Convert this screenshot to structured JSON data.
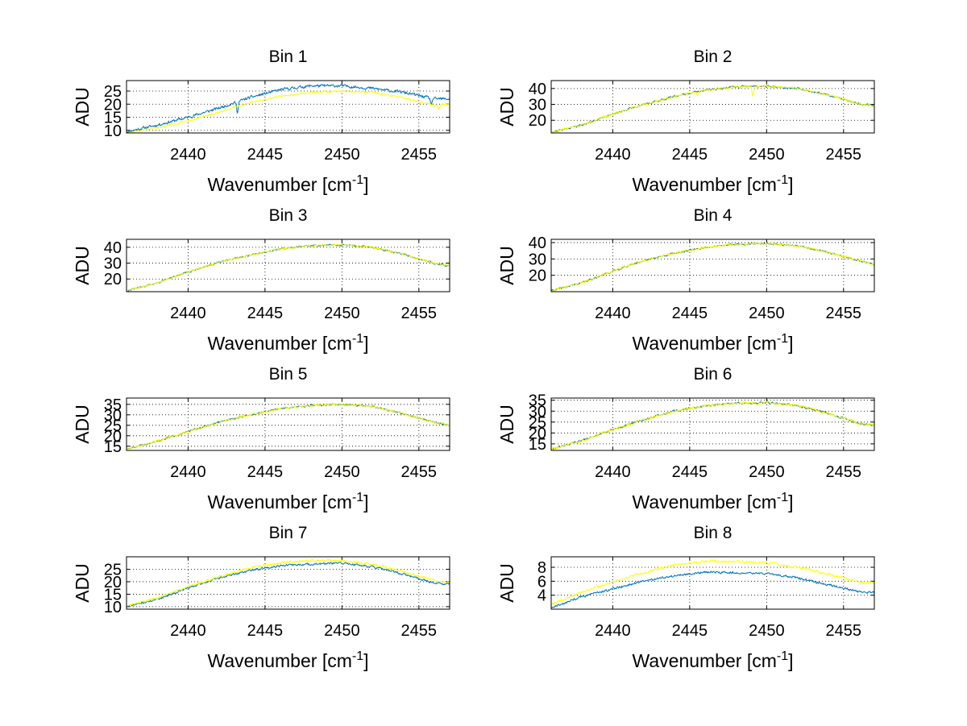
{
  "colors": {
    "series_1": "#0072bd",
    "series_2": "#ffff00",
    "axes": "#000000",
    "grid": "#000000",
    "background": "#ffffff"
  },
  "chart_data": [
    {
      "type": "line",
      "title": "Bin 1",
      "xlabel": "Wavenumber [cm",
      "xlabel_sup": "-1",
      "xlabel_end": "]",
      "ylabel": "ADU",
      "xlim": [
        2436,
        2457
      ],
      "ylim": [
        9,
        29
      ],
      "xticks": [
        2440,
        2445,
        2450,
        2455
      ],
      "yticks": [
        10,
        15,
        20,
        25
      ],
      "series": [
        {
          "name": "blue",
          "color": "#0072bd",
          "seed": 11,
          "noise": 0.45,
          "points": [
            [
              2436,
              9.5
            ],
            [
              2438,
              12
            ],
            [
              2440,
              15
            ],
            [
              2442,
              18.5
            ],
            [
              2444,
              22.5
            ],
            [
              2446,
              25.5
            ],
            [
              2448,
              27
            ],
            [
              2450,
              27
            ],
            [
              2452,
              26
            ],
            [
              2454,
              24.5
            ],
            [
              2456,
              22
            ],
            [
              2457,
              22
            ]
          ],
          "dips": [
            [
              2443.2,
              4
            ],
            [
              2455.8,
              2.5
            ]
          ]
        },
        {
          "name": "yellow",
          "color": "#ffff00",
          "seed": 12,
          "noise": 0.3,
          "points": [
            [
              2436,
              9
            ],
            [
              2438,
              11
            ],
            [
              2440,
              13.5
            ],
            [
              2442,
              17
            ],
            [
              2444,
              20.5
            ],
            [
              2446,
              23
            ],
            [
              2448,
              24.5
            ],
            [
              2450,
              25
            ],
            [
              2452,
              24.5
            ],
            [
              2454,
              22.5
            ],
            [
              2456,
              19.5
            ],
            [
              2457,
              20
            ]
          ],
          "dips": [
            [
              2456.3,
              1.5
            ]
          ]
        }
      ]
    },
    {
      "type": "line",
      "title": "Bin 2",
      "xlabel": "Wavenumber [cm",
      "xlabel_sup": "-1",
      "xlabel_end": "]",
      "ylabel": "ADU",
      "xlim": [
        2436,
        2457
      ],
      "ylim": [
        12,
        45
      ],
      "xticks": [
        2440,
        2445,
        2450,
        2455
      ],
      "yticks": [
        20,
        30,
        40
      ],
      "series": [
        {
          "name": "blue",
          "color": "#0072bd",
          "seed": 21,
          "noise": 0.5,
          "points": [
            [
              2436,
              12.5
            ],
            [
              2438,
              17
            ],
            [
              2440,
              24
            ],
            [
              2442,
              30
            ],
            [
              2444,
              35
            ],
            [
              2446,
              39
            ],
            [
              2448,
              41
            ],
            [
              2450,
              41.5
            ],
            [
              2452,
              40
            ],
            [
              2454,
              36
            ],
            [
              2456,
              30.5
            ],
            [
              2457,
              29
            ]
          ],
          "dips": []
        },
        {
          "name": "yellow",
          "color": "#ffff00",
          "seed": 22,
          "noise": 0.55,
          "points": [
            [
              2436,
              12.5
            ],
            [
              2438,
              17
            ],
            [
              2440,
              24
            ],
            [
              2442,
              30
            ],
            [
              2444,
              35
            ],
            [
              2446,
              39
            ],
            [
              2448,
              41
            ],
            [
              2450,
              41.5
            ],
            [
              2452,
              40
            ],
            [
              2454,
              36
            ],
            [
              2456,
              30.5
            ],
            [
              2457,
              29
            ]
          ],
          "dips": [
            [
              2449.1,
              6
            ],
            [
              2445.5,
              2
            ]
          ]
        }
      ]
    },
    {
      "type": "line",
      "title": "Bin 3",
      "xlabel": "Wavenumber [cm",
      "xlabel_sup": "-1",
      "xlabel_end": "]",
      "ylabel": "ADU",
      "xlim": [
        2436,
        2457
      ],
      "ylim": [
        12,
        45
      ],
      "xticks": [
        2440,
        2445,
        2450,
        2455
      ],
      "yticks": [
        20,
        30,
        40
      ],
      "series": [
        {
          "name": "blue",
          "color": "#0072bd",
          "seed": 31,
          "noise": 0.45,
          "points": [
            [
              2436,
              12.5
            ],
            [
              2438,
              17.5
            ],
            [
              2440,
              24.5
            ],
            [
              2442,
              30.5
            ],
            [
              2444,
              35
            ],
            [
              2446,
              39
            ],
            [
              2448,
              41
            ],
            [
              2450,
              41.5
            ],
            [
              2452,
              40
            ],
            [
              2454,
              35.5
            ],
            [
              2456,
              30
            ],
            [
              2457,
              28
            ]
          ],
          "dips": []
        },
        {
          "name": "yellow",
          "color": "#ffff00",
          "seed": 32,
          "noise": 0.5,
          "points": [
            [
              2436,
              12.5
            ],
            [
              2438,
              17.5
            ],
            [
              2440,
              24.5
            ],
            [
              2442,
              30.5
            ],
            [
              2444,
              35
            ],
            [
              2446,
              39
            ],
            [
              2448,
              41
            ],
            [
              2450,
              41.5
            ],
            [
              2452,
              40
            ],
            [
              2454,
              35.5
            ],
            [
              2456,
              30
            ],
            [
              2457,
              28
            ]
          ],
          "dips": []
        }
      ]
    },
    {
      "type": "line",
      "title": "Bin 4",
      "xlabel": "Wavenumber [cm",
      "xlabel_sup": "-1",
      "xlabel_end": "]",
      "ylabel": "ADU",
      "xlim": [
        2436,
        2457
      ],
      "ylim": [
        10,
        42
      ],
      "xticks": [
        2440,
        2445,
        2450,
        2455
      ],
      "yticks": [
        20,
        30,
        40
      ],
      "series": [
        {
          "name": "blue",
          "color": "#0072bd",
          "seed": 41,
          "noise": 0.45,
          "points": [
            [
              2436,
              10.5
            ],
            [
              2438,
              15.5
            ],
            [
              2440,
              22.5
            ],
            [
              2442,
              29
            ],
            [
              2444,
              33.5
            ],
            [
              2446,
              37
            ],
            [
              2448,
              39
            ],
            [
              2450,
              39.5
            ],
            [
              2452,
              38
            ],
            [
              2454,
              34
            ],
            [
              2456,
              29
            ],
            [
              2457,
              26.5
            ]
          ],
          "dips": []
        },
        {
          "name": "yellow",
          "color": "#ffff00",
          "seed": 42,
          "noise": 0.55,
          "points": [
            [
              2436,
              10.5
            ],
            [
              2438,
              15.5
            ],
            [
              2440,
              22.5
            ],
            [
              2442,
              29
            ],
            [
              2444,
              33.5
            ],
            [
              2446,
              37
            ],
            [
              2448,
              39
            ],
            [
              2450,
              39.5
            ],
            [
              2452,
              38
            ],
            [
              2454,
              34
            ],
            [
              2456,
              29
            ],
            [
              2457,
              26.5
            ]
          ],
          "dips": []
        }
      ]
    },
    {
      "type": "line",
      "title": "Bin 5",
      "xlabel": "Wavenumber [cm",
      "xlabel_sup": "-1",
      "xlabel_end": "]",
      "ylabel": "ADU",
      "xlim": [
        2436,
        2457
      ],
      "ylim": [
        13,
        38
      ],
      "xticks": [
        2440,
        2445,
        2450,
        2455
      ],
      "yticks": [
        15,
        20,
        25,
        30,
        35
      ],
      "series": [
        {
          "name": "blue",
          "color": "#0072bd",
          "seed": 51,
          "noise": 0.35,
          "points": [
            [
              2436,
              13.5
            ],
            [
              2438,
              17.5
            ],
            [
              2440,
              22
            ],
            [
              2442,
              26.5
            ],
            [
              2444,
              30
            ],
            [
              2446,
              33
            ],
            [
              2448,
              34.5
            ],
            [
              2450,
              35
            ],
            [
              2452,
              34
            ],
            [
              2454,
              30.5
            ],
            [
              2456,
              26.5
            ],
            [
              2457,
              25
            ]
          ],
          "dips": []
        },
        {
          "name": "yellow",
          "color": "#ffff00",
          "seed": 52,
          "noise": 0.45,
          "points": [
            [
              2436,
              13.5
            ],
            [
              2438,
              17.5
            ],
            [
              2440,
              22
            ],
            [
              2442,
              26.5
            ],
            [
              2444,
              30
            ],
            [
              2446,
              33
            ],
            [
              2448,
              34.5
            ],
            [
              2450,
              35
            ],
            [
              2452,
              34
            ],
            [
              2454,
              30.5
            ],
            [
              2456,
              26.5
            ],
            [
              2457,
              25
            ]
          ],
          "dips": []
        }
      ]
    },
    {
      "type": "line",
      "title": "Bin 6",
      "xlabel": "Wavenumber [cm",
      "xlabel_sup": "-1",
      "xlabel_end": "]",
      "ylabel": "ADU",
      "xlim": [
        2436,
        2457
      ],
      "ylim": [
        12,
        36
      ],
      "xticks": [
        2440,
        2445,
        2450,
        2455
      ],
      "yticks": [
        15,
        20,
        25,
        30,
        35
      ],
      "series": [
        {
          "name": "blue",
          "color": "#0072bd",
          "seed": 61,
          "noise": 0.4,
          "points": [
            [
              2436,
              12.5
            ],
            [
              2438,
              16.5
            ],
            [
              2440,
              21.5
            ],
            [
              2442,
              26
            ],
            [
              2444,
              30
            ],
            [
              2446,
              32.5
            ],
            [
              2448,
              33.5
            ],
            [
              2450,
              34
            ],
            [
              2452,
              32.5
            ],
            [
              2454,
              29
            ],
            [
              2456,
              24.5
            ],
            [
              2457,
              23.5
            ]
          ],
          "dips": []
        },
        {
          "name": "yellow",
          "color": "#ffff00",
          "seed": 62,
          "noise": 0.5,
          "points": [
            [
              2436,
              12.5
            ],
            [
              2438,
              16.5
            ],
            [
              2440,
              21.5
            ],
            [
              2442,
              26
            ],
            [
              2444,
              30
            ],
            [
              2446,
              32.5
            ],
            [
              2448,
              33.5
            ],
            [
              2450,
              34
            ],
            [
              2452,
              32.5
            ],
            [
              2454,
              29
            ],
            [
              2456,
              24.5
            ],
            [
              2457,
              23.5
            ]
          ],
          "dips": []
        }
      ]
    },
    {
      "type": "line",
      "title": "Bin 7",
      "xlabel": "Wavenumber [cm",
      "xlabel_sup": "-1",
      "xlabel_end": "]",
      "ylabel": "ADU",
      "xlim": [
        2436,
        2457
      ],
      "ylim": [
        9,
        30
      ],
      "xticks": [
        2440,
        2445,
        2450,
        2455
      ],
      "yticks": [
        10,
        15,
        20,
        25
      ],
      "series": [
        {
          "name": "blue",
          "color": "#0072bd",
          "seed": 71,
          "noise": 0.35,
          "points": [
            [
              2436,
              10
            ],
            [
              2438,
              13
            ],
            [
              2440,
              17.5
            ],
            [
              2442,
              21.5
            ],
            [
              2444,
              24.5
            ],
            [
              2446,
              26.5
            ],
            [
              2448,
              27
            ],
            [
              2450,
              27.5
            ],
            [
              2452,
              26
            ],
            [
              2454,
              23
            ],
            [
              2456,
              19.5
            ],
            [
              2457,
              19
            ]
          ],
          "dips": []
        },
        {
          "name": "yellow",
          "color": "#ffff00",
          "seed": 72,
          "noise": 0.4,
          "points": [
            [
              2436,
              10.5
            ],
            [
              2438,
              13.5
            ],
            [
              2440,
              18
            ],
            [
              2442,
              22
            ],
            [
              2444,
              25.5
            ],
            [
              2446,
              27.5
            ],
            [
              2448,
              28.5
            ],
            [
              2450,
              28.5
            ],
            [
              2452,
              27
            ],
            [
              2454,
              24
            ],
            [
              2456,
              20.5
            ],
            [
              2457,
              19.5
            ]
          ],
          "dips": []
        }
      ]
    },
    {
      "type": "line",
      "title": "Bin 8",
      "xlabel": "Wavenumber [cm",
      "xlabel_sup": "-1",
      "xlabel_end": "]",
      "ylabel": "ADU",
      "xlim": [
        2436,
        2457
      ],
      "ylim": [
        2,
        9.5
      ],
      "xticks": [
        2440,
        2445,
        2450,
        2455
      ],
      "yticks": [
        4,
        6,
        8
      ],
      "series": [
        {
          "name": "blue",
          "color": "#0072bd",
          "seed": 81,
          "noise": 0.13,
          "points": [
            [
              2436,
              2.2
            ],
            [
              2438,
              3.8
            ],
            [
              2440,
              4.9
            ],
            [
              2442,
              6
            ],
            [
              2444,
              6.8
            ],
            [
              2446,
              7.3
            ],
            [
              2448,
              7.2
            ],
            [
              2450,
              7.1
            ],
            [
              2452,
              6.5
            ],
            [
              2454,
              5.5
            ],
            [
              2456,
              4.5
            ],
            [
              2457,
              4.4
            ]
          ],
          "dips": []
        },
        {
          "name": "yellow",
          "color": "#ffff00",
          "seed": 82,
          "noise": 0.15,
          "points": [
            [
              2436,
              2.6
            ],
            [
              2438,
              4.5
            ],
            [
              2440,
              5.9
            ],
            [
              2442,
              7.2
            ],
            [
              2444,
              8.3
            ],
            [
              2446,
              8.9
            ],
            [
              2448,
              8.8
            ],
            [
              2450,
              8.6
            ],
            [
              2452,
              8
            ],
            [
              2454,
              7
            ],
            [
              2456,
              5.9
            ],
            [
              2457,
              5.8
            ]
          ],
          "dips": []
        }
      ]
    }
  ]
}
